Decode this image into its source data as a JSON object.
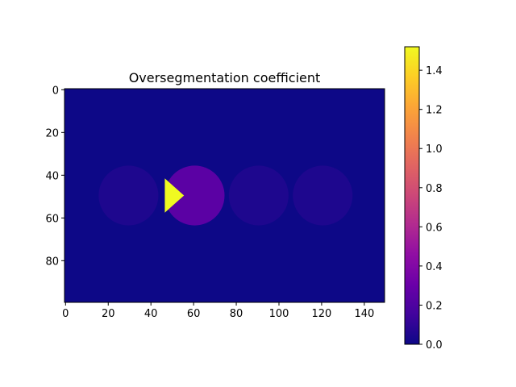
{
  "chart_data": {
    "type": "heatmap",
    "title": "Oversegmentation coefficient",
    "xlabel": "",
    "ylabel": "",
    "colormap": "plasma",
    "image_width": 150,
    "image_height": 100,
    "xlim": [
      0,
      150
    ],
    "ylim": [
      100,
      0
    ],
    "x_ticks": [
      0,
      20,
      40,
      60,
      80,
      100,
      120,
      140
    ],
    "y_ticks": [
      0,
      20,
      40,
      60,
      80
    ],
    "background_value": 0.0,
    "regions": [
      {
        "shape": "disk",
        "cx": 30,
        "cy": 50,
        "r": 14,
        "value": 0.05
      },
      {
        "shape": "disk",
        "cx": 61,
        "cy": 50,
        "r": 14,
        "value": 0.25
      },
      {
        "shape": "disk",
        "cx": 91,
        "cy": 50,
        "r": 14,
        "value": 0.05
      },
      {
        "shape": "disk",
        "cx": 121,
        "cy": 50,
        "r": 14,
        "value": 0.05
      },
      {
        "shape": "polygon",
        "points": [
          [
            47,
            42
          ],
          [
            56,
            50
          ],
          [
            47,
            58
          ]
        ],
        "value": 1.52
      }
    ],
    "colorbar": {
      "vmin": 0.0,
      "vmax": 1.52,
      "ticks": [
        0.0,
        0.2,
        0.4,
        0.6,
        0.8,
        1.0,
        1.2,
        1.4
      ],
      "tick_labels": [
        "0.0",
        "0.2",
        "0.4",
        "0.6",
        "0.8",
        "1.0",
        "1.2",
        "1.4"
      ]
    }
  }
}
